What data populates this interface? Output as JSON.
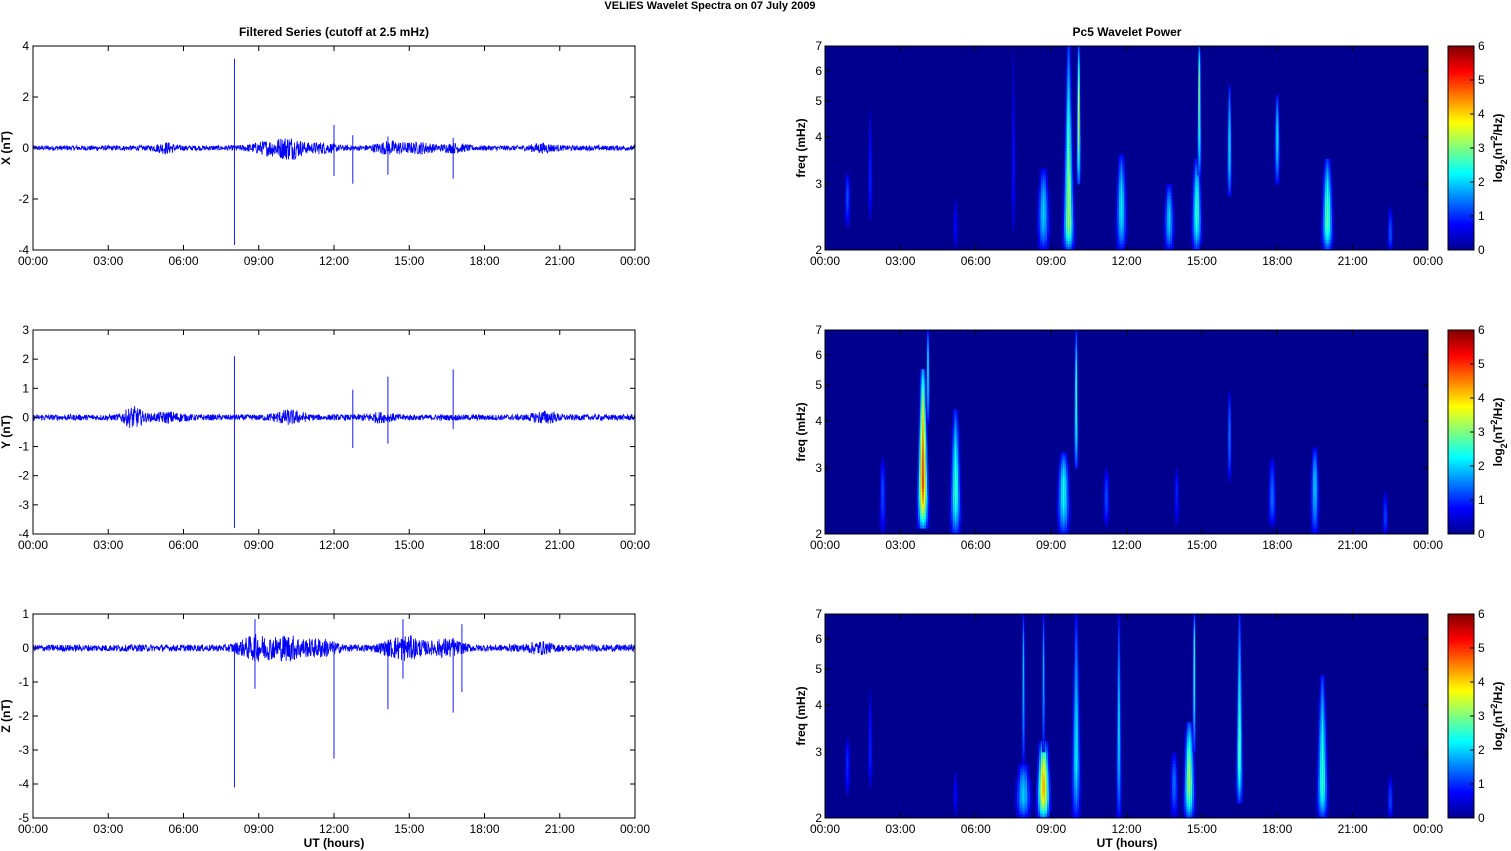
{
  "figure": {
    "title": "VELIES Wavelet Spectra on 07 July      2009",
    "left_title": "Filtered Series (cutoff at 2.5 mHz)",
    "right_title": "Pc5 Wavelet Power",
    "xlabel": "UT (hours)"
  },
  "colors": {
    "trace": "#0000ff",
    "background": "#00008f",
    "axis": "#000000"
  },
  "chart_data": [
    {
      "type": "line",
      "ylabel": "X (nT)",
      "xlim": [
        0,
        24
      ],
      "ylim": [
        -4,
        4
      ],
      "x_ticks": [
        "00:00",
        "03:00",
        "06:00",
        "09:00",
        "12:00",
        "15:00",
        "18:00",
        "21:00",
        "00:00"
      ],
      "y_ticks": [
        -4,
        -2,
        0,
        2,
        4
      ],
      "noise_amplitude": 0.1,
      "bursts": [
        {
          "t": 5.3,
          "amp": 0.15,
          "width": 0.4
        },
        {
          "t": 9.5,
          "amp": 0.22,
          "width": 0.8
        },
        {
          "t": 10.3,
          "amp": 0.3,
          "width": 0.5
        },
        {
          "t": 11.5,
          "amp": 0.15,
          "width": 0.6
        },
        {
          "t": 14.3,
          "amp": 0.2,
          "width": 0.7
        },
        {
          "t": 15.5,
          "amp": 0.15,
          "width": 0.5
        },
        {
          "t": 16.8,
          "amp": 0.12,
          "width": 0.5
        },
        {
          "t": 20.3,
          "amp": 0.12,
          "width": 0.5
        }
      ],
      "spikes": [
        {
          "t": 8.03,
          "min": -3.8,
          "max": 3.5
        },
        {
          "t": 12.0,
          "min": -1.1,
          "max": 0.9
        },
        {
          "t": 12.75,
          "min": -1.4,
          "max": 0.5
        },
        {
          "t": 14.15,
          "min": -1.05,
          "max": 0.45
        },
        {
          "t": 16.75,
          "min": -1.2,
          "max": 0.4
        }
      ]
    },
    {
      "type": "line",
      "ylabel": "Y (nT)",
      "xlim": [
        0,
        24
      ],
      "ylim": [
        -4,
        3
      ],
      "x_ticks": [
        "00:00",
        "03:00",
        "06:00",
        "09:00",
        "12:00",
        "15:00",
        "18:00",
        "21:00",
        "00:00"
      ],
      "y_ticks": [
        -4,
        -3,
        -2,
        -1,
        0,
        1,
        2,
        3
      ],
      "noise_amplitude": 0.1,
      "bursts": [
        {
          "t": 4.0,
          "amp": 0.3,
          "width": 0.4
        },
        {
          "t": 5.4,
          "amp": 0.12,
          "width": 0.6
        },
        {
          "t": 10.2,
          "amp": 0.18,
          "width": 0.6
        },
        {
          "t": 13.8,
          "amp": 0.1,
          "width": 0.6
        },
        {
          "t": 20.4,
          "amp": 0.15,
          "width": 0.5
        }
      ],
      "spikes": [
        {
          "t": 8.03,
          "min": -3.8,
          "max": 2.1
        },
        {
          "t": 12.75,
          "min": -1.05,
          "max": 0.95
        },
        {
          "t": 14.15,
          "min": -0.9,
          "max": 1.4
        },
        {
          "t": 16.75,
          "min": -0.4,
          "max": 1.65
        }
      ]
    },
    {
      "type": "line",
      "ylabel": "Z (nT)",
      "xlim": [
        0,
        24
      ],
      "ylim": [
        -5,
        1
      ],
      "x_ticks": [
        "00:00",
        "03:00",
        "06:00",
        "09:00",
        "12:00",
        "15:00",
        "18:00",
        "21:00",
        "00:00"
      ],
      "y_ticks": [
        -5,
        -4,
        -3,
        -2,
        -1,
        0,
        1
      ],
      "noise_amplitude": 0.1,
      "bursts": [
        {
          "t": 8.9,
          "amp": 0.3,
          "width": 0.7
        },
        {
          "t": 10.2,
          "amp": 0.3,
          "width": 0.7
        },
        {
          "t": 11.5,
          "amp": 0.2,
          "width": 0.6
        },
        {
          "t": 14.8,
          "amp": 0.3,
          "width": 0.8
        },
        {
          "t": 16.5,
          "amp": 0.2,
          "width": 0.6
        },
        {
          "t": 20.2,
          "amp": 0.12,
          "width": 0.5
        }
      ],
      "spikes": [
        {
          "t": 8.03,
          "min": -4.1,
          "max": 0.1
        },
        {
          "t": 8.85,
          "min": -1.2,
          "max": 0.85
        },
        {
          "t": 12.0,
          "min": -3.25,
          "max": 0.1
        },
        {
          "t": 14.15,
          "min": -1.8,
          "max": 0.2
        },
        {
          "t": 14.75,
          "min": -0.9,
          "max": 0.85
        },
        {
          "t": 16.75,
          "min": -1.9,
          "max": 0.3
        },
        {
          "t": 17.1,
          "min": -1.3,
          "max": 0.7
        }
      ]
    },
    {
      "type": "heatmap",
      "ylabel": "freq (mHz)",
      "colorbar_label": "log2(nT2/Hz)",
      "xlim": [
        0,
        24
      ],
      "ylim": [
        2,
        7
      ],
      "yscale": "log",
      "clim": [
        0,
        6
      ],
      "x_ticks": [
        "00:00",
        "03:00",
        "06:00",
        "09:00",
        "12:00",
        "15:00",
        "18:00",
        "21:00",
        "00:00"
      ],
      "y_ticks": [
        2,
        3,
        4,
        5,
        6,
        7
      ],
      "c_ticks": [
        0,
        1,
        2,
        3,
        4,
        5,
        6
      ],
      "blobs": [
        {
          "t": 0.9,
          "f": 2.8,
          "v": 1.2,
          "wt": 0.15,
          "fmin": 2.3,
          "fmax": 3.2
        },
        {
          "t": 1.8,
          "f": 3.1,
          "v": 1.0,
          "wt": 0.12,
          "fmin": 2.4,
          "fmax": 4.8
        },
        {
          "t": 5.2,
          "f": 2.3,
          "v": 0.8,
          "wt": 0.12,
          "fmin": 2.0,
          "fmax": 2.8
        },
        {
          "t": 7.5,
          "f": 3.5,
          "v": 0.9,
          "wt": 0.12,
          "fmin": 2.2,
          "fmax": 7.5
        },
        {
          "t": 8.7,
          "f": 2.5,
          "v": 2.0,
          "wt": 0.25,
          "fmin": 2.0,
          "fmax": 3.3
        },
        {
          "t": 9.7,
          "f": 2.4,
          "v": 3.2,
          "wt": 0.22,
          "fmin": 2.0,
          "fmax": 7.5
        },
        {
          "t": 10.1,
          "f": 4.6,
          "v": 3.6,
          "wt": 0.12,
          "fmin": 3.0,
          "fmax": 7.5
        },
        {
          "t": 11.8,
          "f": 2.6,
          "v": 2.2,
          "wt": 0.22,
          "fmin": 2.0,
          "fmax": 3.6
        },
        {
          "t": 13.7,
          "f": 2.4,
          "v": 2.0,
          "wt": 0.2,
          "fmin": 2.0,
          "fmax": 3.0
        },
        {
          "t": 14.8,
          "f": 2.5,
          "v": 2.6,
          "wt": 0.2,
          "fmin": 2.0,
          "fmax": 3.5
        },
        {
          "t": 14.9,
          "f": 5.5,
          "v": 3.4,
          "wt": 0.12,
          "fmin": 3.2,
          "fmax": 7.5
        },
        {
          "t": 16.1,
          "f": 3.8,
          "v": 2.4,
          "wt": 0.12,
          "fmin": 2.8,
          "fmax": 5.5
        },
        {
          "t": 18.0,
          "f": 4.0,
          "v": 2.2,
          "wt": 0.15,
          "fmin": 3.0,
          "fmax": 5.2
        },
        {
          "t": 20.0,
          "f": 2.4,
          "v": 2.8,
          "wt": 0.22,
          "fmin": 2.0,
          "fmax": 3.5
        },
        {
          "t": 22.5,
          "f": 2.2,
          "v": 1.3,
          "wt": 0.12,
          "fmin": 2.0,
          "fmax": 2.6
        }
      ]
    },
    {
      "type": "heatmap",
      "ylabel": "freq (mHz)",
      "colorbar_label": "log2(nT2/Hz)",
      "xlim": [
        0,
        24
      ],
      "ylim": [
        2,
        7
      ],
      "yscale": "log",
      "clim": [
        0,
        6
      ],
      "x_ticks": [
        "00:00",
        "03:00",
        "06:00",
        "09:00",
        "12:00",
        "15:00",
        "18:00",
        "21:00",
        "00:00"
      ],
      "y_ticks": [
        2,
        3,
        4,
        5,
        6,
        7
      ],
      "c_ticks": [
        0,
        1,
        2,
        3,
        4,
        5,
        6
      ],
      "blobs": [
        {
          "t": 3.9,
          "f": 2.8,
          "v": 4.8,
          "wt": 0.22,
          "fmin": 2.1,
          "fmax": 5.5
        },
        {
          "t": 4.1,
          "f": 5.5,
          "v": 2.6,
          "wt": 0.12,
          "fmin": 4.0,
          "fmax": 7.5
        },
        {
          "t": 5.2,
          "f": 2.6,
          "v": 2.6,
          "wt": 0.22,
          "fmin": 2.0,
          "fmax": 4.3
        },
        {
          "t": 2.3,
          "f": 2.6,
          "v": 1.2,
          "wt": 0.15,
          "fmin": 2.0,
          "fmax": 3.2
        },
        {
          "t": 9.5,
          "f": 2.6,
          "v": 2.4,
          "wt": 0.25,
          "fmin": 2.0,
          "fmax": 3.3
        },
        {
          "t": 10.0,
          "f": 4.4,
          "v": 2.8,
          "wt": 0.12,
          "fmin": 3.0,
          "fmax": 7.5
        },
        {
          "t": 11.2,
          "f": 2.5,
          "v": 1.2,
          "wt": 0.15,
          "fmin": 2.1,
          "fmax": 3.0
        },
        {
          "t": 14.0,
          "f": 2.6,
          "v": 1.0,
          "wt": 0.12,
          "fmin": 2.1,
          "fmax": 3.0
        },
        {
          "t": 16.1,
          "f": 3.7,
          "v": 1.6,
          "wt": 0.12,
          "fmin": 2.8,
          "fmax": 4.8
        },
        {
          "t": 17.8,
          "f": 2.5,
          "v": 1.4,
          "wt": 0.18,
          "fmin": 2.1,
          "fmax": 3.2
        },
        {
          "t": 19.5,
          "f": 2.7,
          "v": 2.0,
          "wt": 0.18,
          "fmin": 2.0,
          "fmax": 3.4
        },
        {
          "t": 22.3,
          "f": 2.2,
          "v": 1.2,
          "wt": 0.12,
          "fmin": 2.0,
          "fmax": 2.6
        }
      ]
    },
    {
      "type": "heatmap",
      "ylabel": "freq (mHz)",
      "colorbar_label": "log2(nT2/Hz)",
      "xlim": [
        0,
        24
      ],
      "ylim": [
        2,
        7
      ],
      "yscale": "log",
      "clim": [
        0,
        6
      ],
      "x_ticks": [
        "00:00",
        "03:00",
        "06:00",
        "09:00",
        "12:00",
        "15:00",
        "18:00",
        "21:00",
        "00:00"
      ],
      "y_ticks": [
        2,
        3,
        4,
        5,
        6,
        7
      ],
      "c_ticks": [
        0,
        1,
        2,
        3,
        4,
        5,
        6
      ],
      "blobs": [
        {
          "t": 0.9,
          "f": 2.8,
          "v": 1.0,
          "wt": 0.15,
          "fmin": 2.3,
          "fmax": 3.3
        },
        {
          "t": 1.8,
          "f": 3.0,
          "v": 1.0,
          "wt": 0.12,
          "fmin": 2.4,
          "fmax": 4.5
        },
        {
          "t": 5.2,
          "f": 2.3,
          "v": 0.8,
          "wt": 0.12,
          "fmin": 2.0,
          "fmax": 2.7
        },
        {
          "t": 7.9,
          "f": 2.3,
          "v": 2.0,
          "wt": 0.3,
          "fmin": 2.0,
          "fmax": 2.8
        },
        {
          "t": 7.9,
          "f": 5.0,
          "v": 2.2,
          "wt": 0.1,
          "fmin": 2.8,
          "fmax": 7.5
        },
        {
          "t": 8.7,
          "f": 2.4,
          "v": 4.2,
          "wt": 0.25,
          "fmin": 2.0,
          "fmax": 3.2
        },
        {
          "t": 8.7,
          "f": 5.0,
          "v": 2.0,
          "wt": 0.1,
          "fmin": 3.0,
          "fmax": 7.5
        },
        {
          "t": 10.0,
          "f": 3.0,
          "v": 2.2,
          "wt": 0.2,
          "fmin": 2.0,
          "fmax": 7.5
        },
        {
          "t": 11.7,
          "f": 3.6,
          "v": 2.2,
          "wt": 0.12,
          "fmin": 2.0,
          "fmax": 7.5
        },
        {
          "t": 13.9,
          "f": 2.5,
          "v": 1.4,
          "wt": 0.18,
          "fmin": 2.0,
          "fmax": 3.0
        },
        {
          "t": 14.5,
          "f": 2.5,
          "v": 3.2,
          "wt": 0.22,
          "fmin": 2.0,
          "fmax": 3.6
        },
        {
          "t": 14.7,
          "f": 5.5,
          "v": 2.8,
          "wt": 0.1,
          "fmin": 3.0,
          "fmax": 7.5
        },
        {
          "t": 16.5,
          "f": 3.0,
          "v": 2.8,
          "wt": 0.15,
          "fmin": 2.2,
          "fmax": 7.5
        },
        {
          "t": 19.8,
          "f": 2.5,
          "v": 2.6,
          "wt": 0.22,
          "fmin": 2.0,
          "fmax": 4.8
        },
        {
          "t": 22.5,
          "f": 2.2,
          "v": 1.2,
          "wt": 0.12,
          "fmin": 2.0,
          "fmax": 2.6
        }
      ]
    }
  ]
}
